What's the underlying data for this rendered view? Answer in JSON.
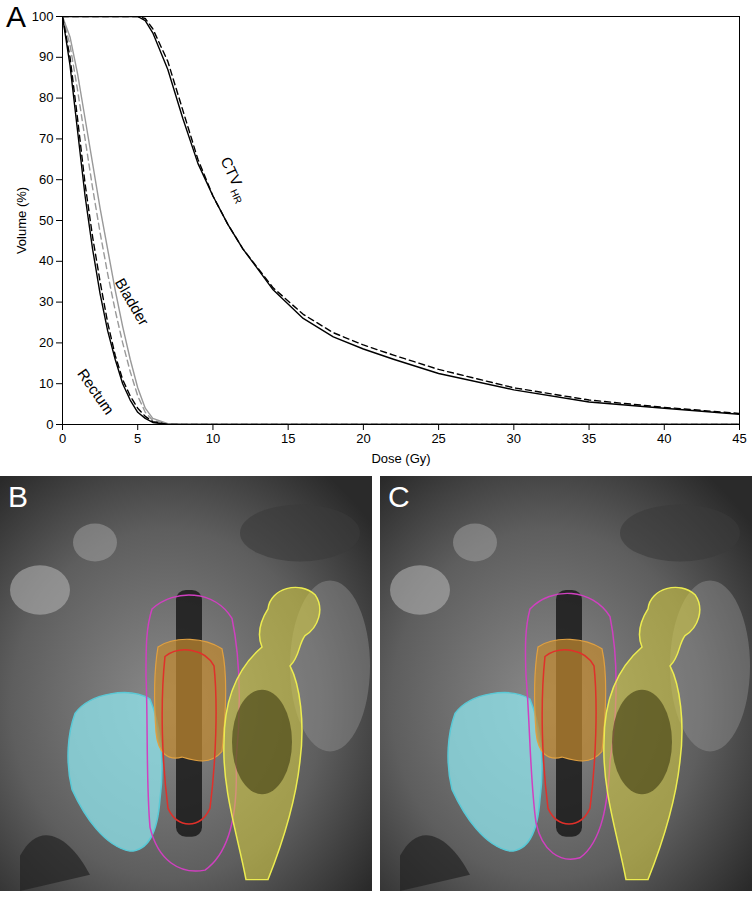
{
  "chart_data": {
    "type": "line",
    "panel_label": "A",
    "x_label": "Dose (Gy)",
    "y_label": "Volume (%)",
    "x": [
      0,
      0.5,
      1,
      1.5,
      2,
      2.5,
      3,
      3.5,
      4,
      4.5,
      5,
      5.5,
      6,
      7,
      8,
      9,
      10,
      11,
      12,
      14,
      16,
      18,
      20,
      22,
      25,
      30,
      35,
      40,
      45
    ],
    "xlim": [
      0,
      45
    ],
    "xticks": [
      0,
      5,
      10,
      15,
      20,
      25,
      30,
      35,
      40,
      45
    ],
    "ylim": [
      0,
      100
    ],
    "yticks": [
      0,
      10,
      20,
      30,
      40,
      50,
      60,
      70,
      80,
      90,
      100
    ],
    "grid": false,
    "series": [
      {
        "name": "CTV",
        "color": "#000000",
        "line_style": "solid",
        "values": [
          100,
          100,
          100,
          100,
          100,
          100,
          100,
          100,
          100,
          100,
          100,
          99,
          96,
          87,
          75,
          64,
          56,
          49,
          43,
          33,
          26,
          21.5,
          18.5,
          16,
          12.5,
          8.5,
          5.5,
          4,
          2.5
        ]
      },
      {
        "name": "CTV",
        "color": "#000000",
        "line_style": "dashed",
        "values": [
          100,
          100,
          100,
          100,
          100,
          100,
          100,
          100,
          100,
          100,
          100,
          99.5,
          97,
          89,
          77,
          65,
          56,
          49,
          43,
          33.5,
          27,
          22.5,
          19.5,
          17,
          13.5,
          9,
          6,
          4.2,
          2.7
        ]
      },
      {
        "name": "Bladder",
        "color": "#999999",
        "line_style": "solid",
        "values": [
          100,
          95,
          86,
          75,
          64,
          53,
          43,
          33,
          24,
          16,
          9,
          4,
          1.5,
          0.2,
          0,
          0,
          0,
          0,
          0,
          0,
          0,
          0,
          0,
          0,
          0,
          0,
          0,
          0,
          0
        ]
      },
      {
        "name": "Bladder",
        "color": "#999999",
        "line_style": "dashed",
        "values": [
          100,
          93,
          82,
          70,
          58,
          47,
          37,
          28,
          20,
          13,
          7,
          3,
          1,
          0.1,
          0,
          0,
          0,
          0,
          0,
          0,
          0,
          0,
          0,
          0,
          0,
          0,
          0,
          0,
          0
        ]
      },
      {
        "name": "Rectum",
        "color": "#000000",
        "line_style": "solid",
        "values": [
          100,
          88,
          72,
          56,
          43,
          32,
          23,
          16,
          10,
          6,
          3,
          1.5,
          0.5,
          0,
          0,
          0,
          0,
          0,
          0,
          0,
          0,
          0,
          0,
          0,
          0,
          0,
          0,
          0,
          0
        ]
      },
      {
        "name": "Rectum",
        "color": "#000000",
        "line_style": "dashed",
        "values": [
          100,
          90,
          75,
          59,
          46,
          35,
          25,
          17,
          11,
          7,
          4,
          2,
          0.7,
          0,
          0,
          0,
          0,
          0,
          0,
          0,
          0,
          0,
          0,
          0,
          0,
          0,
          0,
          0,
          0
        ]
      }
    ],
    "annotations": [
      {
        "text": "CTV",
        "subscript": "HR",
        "x": 11.2,
        "y": 62
      },
      {
        "text": "Bladder",
        "x": 4.6,
        "y": 30
      },
      {
        "text": "Rectum",
        "x": 2.2,
        "y": 8
      }
    ]
  },
  "images": [
    {
      "panel_label": "B"
    },
    {
      "panel_label": "C"
    }
  ]
}
